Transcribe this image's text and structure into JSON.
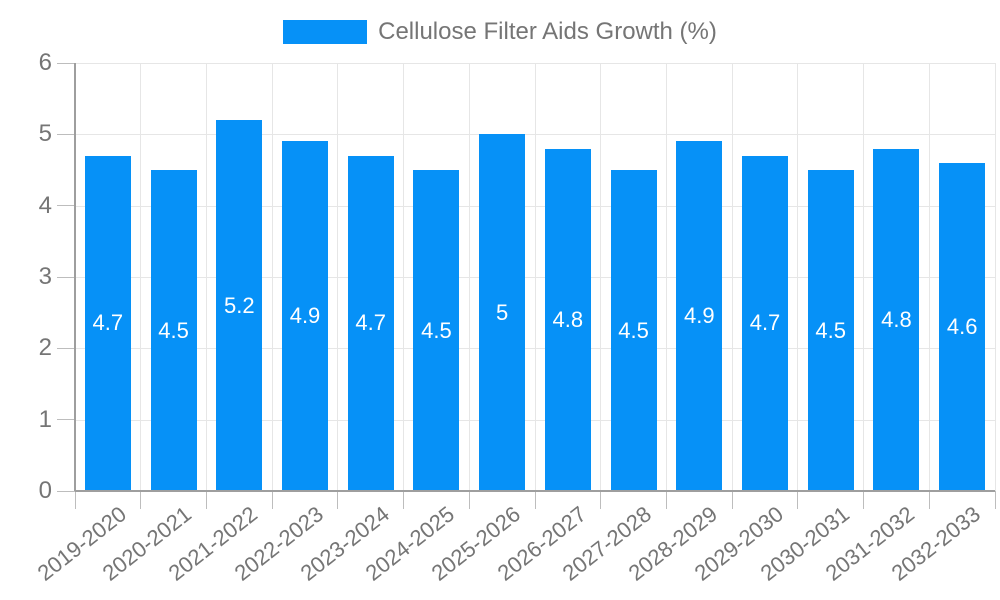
{
  "legend": {
    "label": "Cellulose Filter Aids Growth (%)"
  },
  "chart_data": {
    "type": "bar",
    "title": "Cellulose Filter Aids Growth (%)",
    "categories": [
      "2019-2020",
      "2020-2021",
      "2021-2022",
      "2022-2023",
      "2023-2024",
      "2024-2025",
      "2025-2026",
      "2026-2027",
      "2027-2028",
      "2028-2029",
      "2029-2030",
      "2030-2031",
      "2031-2032",
      "2032-2033"
    ],
    "values": [
      4.7,
      4.5,
      5.2,
      4.9,
      4.7,
      4.5,
      5,
      4.8,
      4.5,
      4.9,
      4.7,
      4.5,
      4.8,
      4.6
    ],
    "value_labels": [
      "4.7",
      "4.5",
      "5.2",
      "4.9",
      "4.7",
      "4.5",
      "5",
      "4.8",
      "4.5",
      "4.9",
      "4.7",
      "4.5",
      "4.8",
      "4.6"
    ],
    "xlabel": "",
    "ylabel": "",
    "ylim": [
      0,
      6
    ],
    "yticks": [
      0,
      1,
      2,
      3,
      4,
      5,
      6
    ],
    "grid": "on",
    "legend_position": "top",
    "bar_color": "#0691f7",
    "bar_label_color": "#ffffff",
    "grid_color": "#e6e6e6",
    "axis_color": "#9e9e9e",
    "tick_color": "#bdbdbd",
    "text_color": "#757575"
  }
}
